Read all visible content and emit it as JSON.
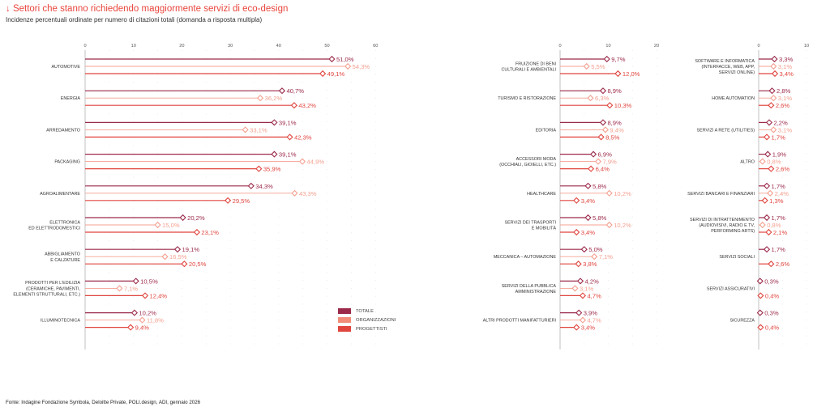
{
  "header": {
    "title": "↓ Settori che stanno richiedendo maggiormente servizi di eco-design",
    "subtitle": "Incidenze percentuali ordinate per numero di citazioni totali (domanda a risposta multipla)"
  },
  "footer": {
    "source": "Fonte: Indagine Fondazione Symbola, Deloitte Private, POLI.design, ADI, gennaio 2026"
  },
  "legend": [
    {
      "label": "TOTALE",
      "color": "#9b2a4a"
    },
    {
      "label": "ORGANIZZAZIONI",
      "color": "#f08c78"
    },
    {
      "label": "PROGETTISTI",
      "color": "#e0453e"
    }
  ],
  "colors": {
    "totale": "#9b2a4a",
    "organizzazioni": "#f4a090",
    "progettisti": "#e0453e",
    "axis": "#cccccc",
    "title": "#e8453c"
  },
  "chart_data": [
    {
      "type": "lollipop-horizontal",
      "title": "Settori che stanno richiedendo maggiormente servizi di eco-design (1/3)",
      "xlim": [
        0,
        60
      ],
      "xticks": [
        0,
        10,
        20,
        30,
        40,
        50,
        60
      ],
      "series_names": [
        "Totale",
        "Organizzazioni",
        "Progettisti"
      ],
      "categories": [
        {
          "label": [
            "AUTOMOTIVE"
          ],
          "values": [
            51.0,
            54.3,
            49.1
          ],
          "labels": [
            "51,0%",
            "54,3%",
            "49,1%"
          ]
        },
        {
          "label": [
            "ENERGIA"
          ],
          "values": [
            40.7,
            36.2,
            43.2
          ],
          "labels": [
            "40,7%",
            "36,2%",
            "43,2%"
          ]
        },
        {
          "label": [
            "ARREDAMENTO"
          ],
          "values": [
            39.1,
            33.1,
            42.3
          ],
          "labels": [
            "39,1%",
            "33,1%",
            "42,3%"
          ]
        },
        {
          "label": [
            "PACKAGING"
          ],
          "values": [
            39.1,
            44.9,
            35.9
          ],
          "labels": [
            "39,1%",
            "44,9%",
            "35,9%"
          ]
        },
        {
          "label": [
            "AGROALIMENTARE"
          ],
          "values": [
            34.3,
            43.3,
            29.5
          ],
          "labels": [
            "34,3%",
            "43,3%",
            "29,5%"
          ]
        },
        {
          "label": [
            "ELETTRONICA",
            "ED ELETTRODOMESTICI"
          ],
          "values": [
            20.2,
            15.0,
            23.1
          ],
          "labels": [
            "20,2%",
            "15,0%",
            "23,1%"
          ]
        },
        {
          "label": [
            "ABBIGLIAMENTO",
            "E CALZATURE"
          ],
          "values": [
            19.1,
            16.5,
            20.5
          ],
          "labels": [
            "19,1%",
            "16,5%",
            "20,5%"
          ]
        },
        {
          "label": [
            "PRODOTTI PER L'EDILIZIA",
            "(CERAMICHE, PAVIMENTI,",
            "ELEMENTI STRUTTURALI, ETC.)"
          ],
          "values": [
            10.5,
            7.1,
            12.4
          ],
          "labels": [
            "10,5%",
            "7,1%",
            "12,4%"
          ]
        },
        {
          "label": [
            "ILLUMINOTECNICA"
          ],
          "values": [
            10.2,
            11.8,
            9.4
          ],
          "labels": [
            "10,2%",
            "11,8%",
            "9,4%"
          ]
        }
      ]
    },
    {
      "type": "lollipop-horizontal",
      "title": "Settori che stanno richiedendo maggiormente servizi di eco-design (2/3)",
      "xlim": [
        0,
        20
      ],
      "xticks": [
        0,
        10,
        20
      ],
      "series_names": [
        "Totale",
        "Organizzazioni",
        "Progettisti"
      ],
      "categories": [
        {
          "label": [
            "FRUIZIONE DI BENI",
            "CULTURALI E AMBIENTALI"
          ],
          "values": [
            9.7,
            5.5,
            12.0
          ],
          "labels": [
            "9,7%",
            "5,5%",
            "12,0%"
          ]
        },
        {
          "label": [
            "TURISMO E RISTORAZIONE"
          ],
          "values": [
            8.9,
            6.3,
            10.3
          ],
          "labels": [
            "8,9%",
            "6,3%",
            "10,3%"
          ]
        },
        {
          "label": [
            "EDITORIA"
          ],
          "values": [
            8.9,
            9.4,
            8.5
          ],
          "labels": [
            "8,9%",
            "9,4%",
            "8,5%"
          ]
        },
        {
          "label": [
            "ACCESSORI MODA",
            "(OCCHIALI, GIOIELLI, ETC.)"
          ],
          "values": [
            6.9,
            7.9,
            6.4
          ],
          "labels": [
            "6,9%",
            "7,9%",
            "6,4%"
          ]
        },
        {
          "label": [
            "HEALTHCARE"
          ],
          "values": [
            5.8,
            10.2,
            3.4
          ],
          "labels": [
            "5,8%",
            "10,2%",
            "3,4%"
          ]
        },
        {
          "label": [
            "SERVIZI DEI TRASPORTI",
            "E MOBILITÀ"
          ],
          "values": [
            5.8,
            10.2,
            3.4
          ],
          "labels": [
            "5,8%",
            "10,2%",
            "3,4%"
          ]
        },
        {
          "label": [
            "MECCANICA – AUTOMAZIONE"
          ],
          "values": [
            5.0,
            7.1,
            3.8
          ],
          "labels": [
            "5,0%",
            "7,1%",
            "3,8%"
          ]
        },
        {
          "label": [
            "SERVIZI DELLA PUBBLICA",
            "AMMINISTRAZIONE"
          ],
          "values": [
            4.2,
            3.1,
            4.7
          ],
          "labels": [
            "4,2%",
            "3,1%",
            "4,7%"
          ]
        },
        {
          "label": [
            "ALTRI PRODOTTI MANIFATTURIERI"
          ],
          "values": [
            3.9,
            4.7,
            3.4
          ],
          "labels": [
            "3,9%",
            "4,7%",
            "3,4%"
          ]
        }
      ]
    },
    {
      "type": "lollipop-horizontal",
      "title": "Settori che stanno richiedendo maggiormente servizi di eco-design (3/3)",
      "xlim": [
        0,
        10
      ],
      "xticks": [
        0,
        10
      ],
      "series_names": [
        "Totale",
        "Organizzazioni",
        "Progettisti"
      ],
      "categories": [
        {
          "label": [
            "SOFTWARE E INFORMATICA",
            "(INTERFACCE, WEB, APP,",
            "SERVIZI ONLINE)"
          ],
          "values": [
            3.3,
            3.1,
            3.4
          ],
          "labels": [
            "3,3%",
            "3,1%",
            "3,4%"
          ]
        },
        {
          "label": [
            "HOME AUTOMATION"
          ],
          "values": [
            2.8,
            3.1,
            2.6
          ],
          "labels": [
            "2,8%",
            "3,1%",
            "2,6%"
          ]
        },
        {
          "label": [
            "SERVIZI A RETE (UTILITIES)"
          ],
          "values": [
            2.2,
            3.1,
            1.7
          ],
          "labels": [
            "2,2%",
            "3,1%",
            "1,7%"
          ]
        },
        {
          "label": [
            "ALTRO"
          ],
          "values": [
            1.9,
            0.8,
            2.6
          ],
          "labels": [
            "1,9%",
            "0,8%",
            "2,6%"
          ]
        },
        {
          "label": [
            "SERVIZI BANCARI E FINANZIARI"
          ],
          "values": [
            1.7,
            2.4,
            1.3
          ],
          "labels": [
            "1,7%",
            "2,4%",
            "1,3%"
          ]
        },
        {
          "label": [
            "SERVIZI DI INTRATTENIMENTO",
            "(AUDIOVISIVI, RADIO E TV,",
            "PERFORMING ARTS)"
          ],
          "values": [
            1.7,
            0.8,
            2.1
          ],
          "labels": [
            "1,7%",
            "0,8%",
            "2,1%"
          ]
        },
        {
          "label": [
            "SERVIZI SOCIALI"
          ],
          "values": [
            1.7,
            null,
            2.6
          ],
          "labels": [
            "1,7%",
            "",
            "2,6%"
          ]
        },
        {
          "label": [
            "SERVIZI ASSICURATIVI"
          ],
          "values": [
            0.3,
            null,
            0.4
          ],
          "labels": [
            "0,3%",
            "",
            "0,4%"
          ]
        },
        {
          "label": [
            "SICUREZZA"
          ],
          "values": [
            0.3,
            null,
            0.4
          ],
          "labels": [
            "0,3%",
            "",
            "0,4%"
          ]
        }
      ]
    }
  ]
}
